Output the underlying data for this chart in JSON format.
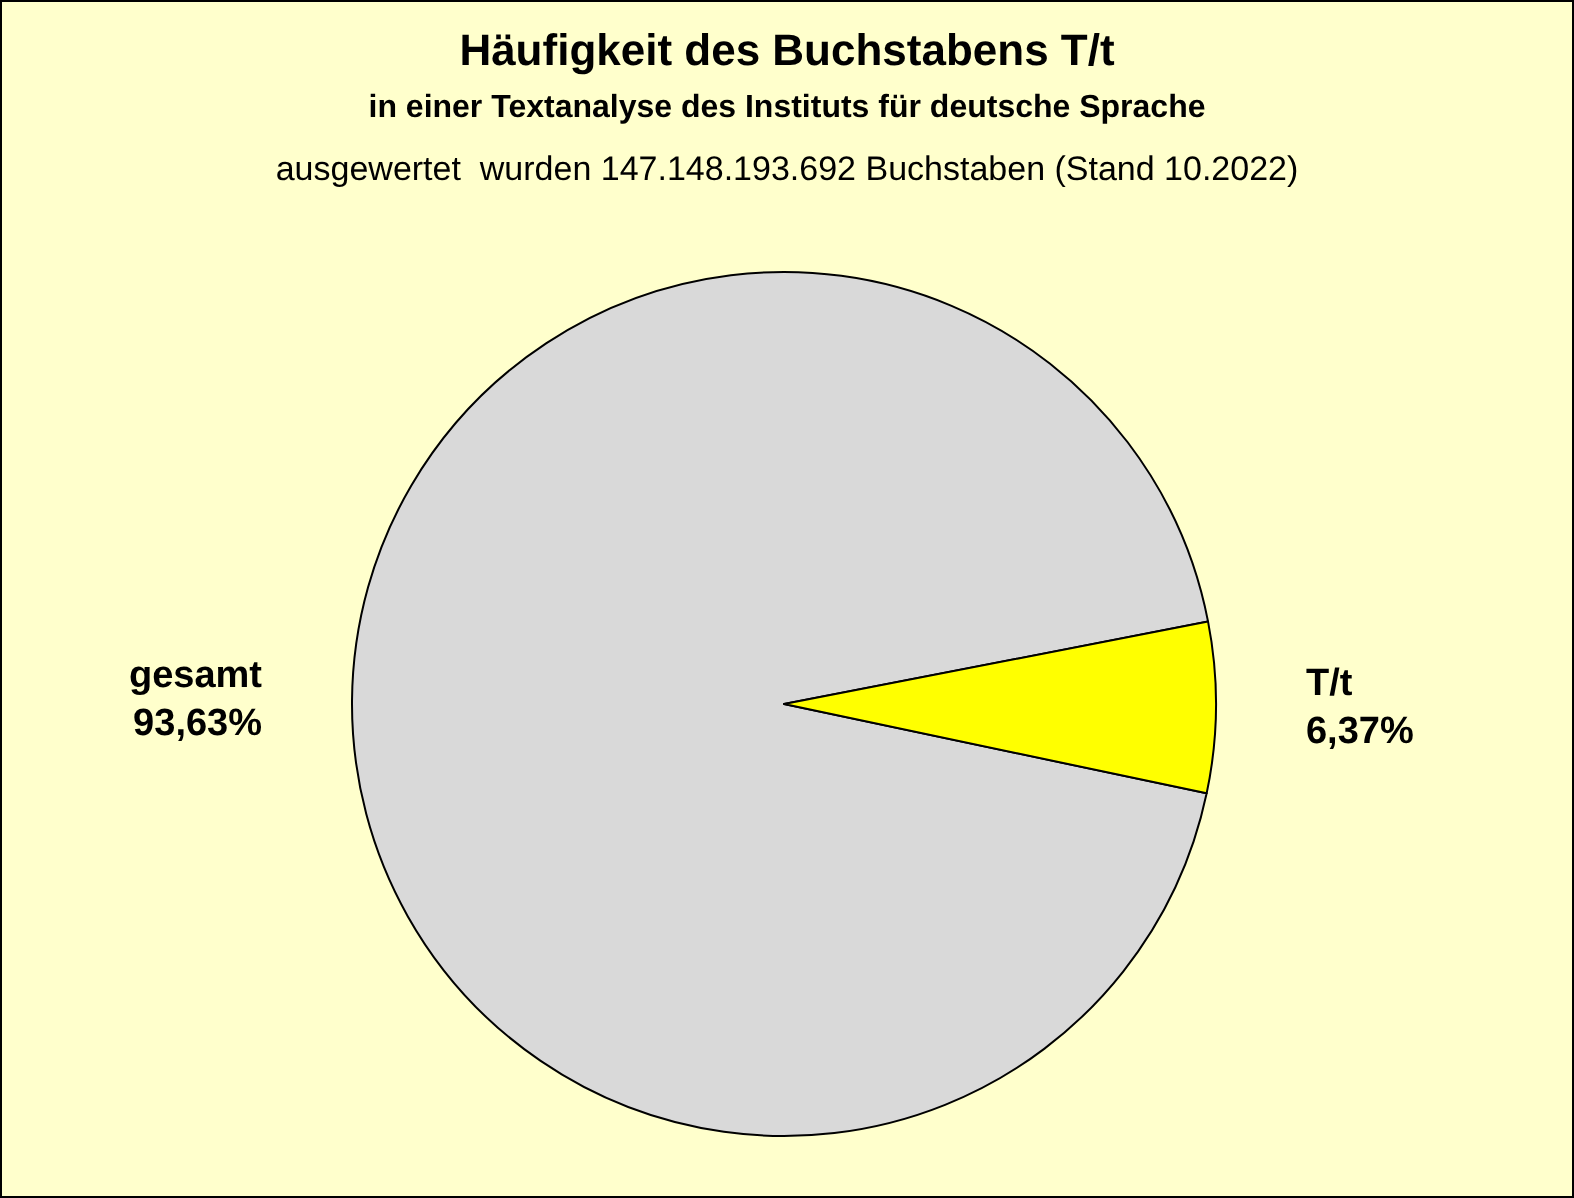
{
  "chart_data": {
    "type": "pie",
    "title": "Häufigkeit des Buchstabens T/t",
    "subtitle": "in einer Textanalyse des Instituts für deutsche Sprache",
    "annotations": [
      "ausgewertet  wurden 147.148.193.692 Buchstaben (Stand 10.2022)"
    ],
    "categories": [
      "gesamt",
      "T/t"
    ],
    "values": [
      93.63,
      6.37
    ],
    "colors": [
      "#d9d9d9",
      "#ffff00"
    ],
    "value_labels": [
      "93,63%",
      "6,37%"
    ],
    "legend": false
  }
}
